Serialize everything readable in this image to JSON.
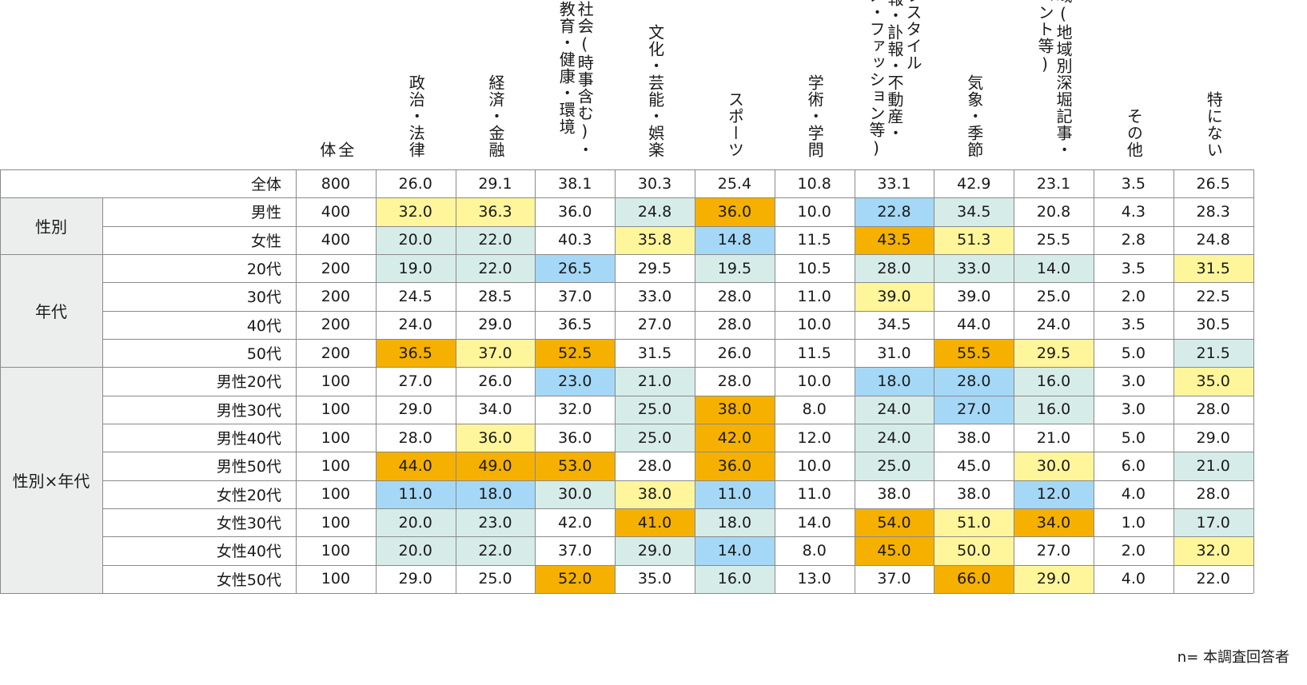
{
  "table": {
    "columns": [
      {
        "id": "n",
        "label": "全\n体"
      },
      {
        "id": "politics",
        "label": "政治・法律"
      },
      {
        "id": "economy",
        "label": "経済・金融"
      },
      {
        "id": "society",
        "label": "社会(時事含む)・\n教育・健康・環境"
      },
      {
        "id": "culture",
        "label": "文化・芸能・娯楽"
      },
      {
        "id": "sports",
        "label": "スポーツ"
      },
      {
        "id": "science",
        "label": "学術・学問"
      },
      {
        "id": "lifestyle",
        "label": "ライフスタイル\n(朗報・訃報・不動産・\nグルメ・ファッション等)"
      },
      {
        "id": "weather",
        "label": "気象・季節"
      },
      {
        "id": "regional",
        "label": "地域(地域別深堀記事・\nイベント等)"
      },
      {
        "id": "other",
        "label": "その他"
      },
      {
        "id": "none",
        "label": "特にない"
      }
    ],
    "colors": {
      "high": "#f5b000",
      "mid_high": "#fff59a",
      "mid_low": "#d6ece9",
      "low": "#a5d8f6",
      "none": "#ffffff",
      "group_bg": "#eceeed"
    },
    "groups": [
      {
        "label": "",
        "start": 0,
        "span": 1
      },
      {
        "label": "性別",
        "start": 1,
        "span": 2
      },
      {
        "label": "年代",
        "start": 3,
        "span": 4
      },
      {
        "label": "性別×年代",
        "start": 7,
        "span": 8
      }
    ],
    "rows": [
      {
        "label": "全体",
        "n": "800",
        "values": [
          "26.0",
          "29.1",
          "38.1",
          "30.3",
          "25.4",
          "10.8",
          "33.1",
          "42.9",
          "23.1",
          "3.5",
          "26.5"
        ],
        "hl": [
          "",
          "",
          "",
          "",
          "",
          "",
          "",
          "",
          "",
          "",
          ""
        ]
      },
      {
        "label": "男性",
        "n": "400",
        "values": [
          "32.0",
          "36.3",
          "36.0",
          "24.8",
          "36.0",
          "10.0",
          "22.8",
          "34.5",
          "20.8",
          "4.3",
          "28.3"
        ],
        "hl": [
          "mid_high",
          "mid_high",
          "",
          "mid_low",
          "high",
          "",
          "low",
          "mid_low",
          "",
          "",
          ""
        ]
      },
      {
        "label": "女性",
        "n": "400",
        "values": [
          "20.0",
          "22.0",
          "40.3",
          "35.8",
          "14.8",
          "11.5",
          "43.5",
          "51.3",
          "25.5",
          "2.8",
          "24.8"
        ],
        "hl": [
          "mid_low",
          "mid_low",
          "",
          "mid_high",
          "low",
          "",
          "high",
          "mid_high",
          "",
          "",
          ""
        ]
      },
      {
        "label": "20代",
        "n": "200",
        "values": [
          "19.0",
          "22.0",
          "26.5",
          "29.5",
          "19.5",
          "10.5",
          "28.0",
          "33.0",
          "14.0",
          "3.5",
          "31.5"
        ],
        "hl": [
          "mid_low",
          "mid_low",
          "low",
          "",
          "mid_low",
          "",
          "mid_low",
          "mid_low",
          "mid_low",
          "",
          "mid_high"
        ]
      },
      {
        "label": "30代",
        "n": "200",
        "values": [
          "24.5",
          "28.5",
          "37.0",
          "33.0",
          "28.0",
          "11.0",
          "39.0",
          "39.0",
          "25.0",
          "2.0",
          "22.5"
        ],
        "hl": [
          "",
          "",
          "",
          "",
          "",
          "",
          "mid_high",
          "",
          "",
          "",
          ""
        ]
      },
      {
        "label": "40代",
        "n": "200",
        "values": [
          "24.0",
          "29.0",
          "36.5",
          "27.0",
          "28.0",
          "10.0",
          "34.5",
          "44.0",
          "24.0",
          "3.5",
          "30.5"
        ],
        "hl": [
          "",
          "",
          "",
          "",
          "",
          "",
          "",
          "",
          "",
          "",
          ""
        ]
      },
      {
        "label": "50代",
        "n": "200",
        "values": [
          "36.5",
          "37.0",
          "52.5",
          "31.5",
          "26.0",
          "11.5",
          "31.0",
          "55.5",
          "29.5",
          "5.0",
          "21.5"
        ],
        "hl": [
          "high",
          "mid_high",
          "high",
          "",
          "",
          "",
          "",
          "high",
          "mid_high",
          "",
          "mid_low"
        ]
      },
      {
        "label": "男性20代",
        "n": "100",
        "values": [
          "27.0",
          "26.0",
          "23.0",
          "21.0",
          "28.0",
          "10.0",
          "18.0",
          "28.0",
          "16.0",
          "3.0",
          "35.0"
        ],
        "hl": [
          "",
          "",
          "low",
          "mid_low",
          "",
          "",
          "low",
          "low",
          "mid_low",
          "",
          "mid_high"
        ]
      },
      {
        "label": "男性30代",
        "n": "100",
        "values": [
          "29.0",
          "34.0",
          "32.0",
          "25.0",
          "38.0",
          "8.0",
          "24.0",
          "27.0",
          "16.0",
          "3.0",
          "28.0"
        ],
        "hl": [
          "",
          "",
          "",
          "mid_low",
          "high",
          "",
          "mid_low",
          "low",
          "mid_low",
          "",
          ""
        ]
      },
      {
        "label": "男性40代",
        "n": "100",
        "values": [
          "28.0",
          "36.0",
          "36.0",
          "25.0",
          "42.0",
          "12.0",
          "24.0",
          "38.0",
          "21.0",
          "5.0",
          "29.0"
        ],
        "hl": [
          "",
          "mid_high",
          "",
          "mid_low",
          "high",
          "",
          "mid_low",
          "",
          "",
          "",
          ""
        ]
      },
      {
        "label": "男性50代",
        "n": "100",
        "values": [
          "44.0",
          "49.0",
          "53.0",
          "28.0",
          "36.0",
          "10.0",
          "25.0",
          "45.0",
          "30.0",
          "6.0",
          "21.0"
        ],
        "hl": [
          "high",
          "high",
          "high",
          "",
          "high",
          "",
          "mid_low",
          "",
          "mid_high",
          "",
          "mid_low"
        ]
      },
      {
        "label": "女性20代",
        "n": "100",
        "values": [
          "11.0",
          "18.0",
          "30.0",
          "38.0",
          "11.0",
          "11.0",
          "38.0",
          "38.0",
          "12.0",
          "4.0",
          "28.0"
        ],
        "hl": [
          "low",
          "low",
          "mid_low",
          "mid_high",
          "low",
          "",
          "",
          "",
          "low",
          "",
          ""
        ]
      },
      {
        "label": "女性30代",
        "n": "100",
        "values": [
          "20.0",
          "23.0",
          "42.0",
          "41.0",
          "18.0",
          "14.0",
          "54.0",
          "51.0",
          "34.0",
          "1.0",
          "17.0"
        ],
        "hl": [
          "mid_low",
          "mid_low",
          "",
          "high",
          "mid_low",
          "",
          "high",
          "mid_high",
          "high",
          "",
          "mid_low"
        ]
      },
      {
        "label": "女性40代",
        "n": "100",
        "values": [
          "20.0",
          "22.0",
          "37.0",
          "29.0",
          "14.0",
          "8.0",
          "45.0",
          "50.0",
          "27.0",
          "2.0",
          "32.0"
        ],
        "hl": [
          "mid_low",
          "mid_low",
          "",
          "mid_low",
          "low",
          "",
          "high",
          "mid_high",
          "",
          "",
          "mid_high"
        ]
      },
      {
        "label": "女性50代",
        "n": "100",
        "values": [
          "29.0",
          "25.0",
          "52.0",
          "35.0",
          "16.0",
          "13.0",
          "37.0",
          "66.0",
          "29.0",
          "4.0",
          "22.0"
        ],
        "hl": [
          "",
          "",
          "high",
          "",
          "mid_low",
          "",
          "",
          "high",
          "mid_high",
          "",
          ""
        ]
      }
    ]
  },
  "chart_data": {
    "type": "table",
    "columns": [
      "全体",
      "政治・法律",
      "経済・金融",
      "社会(時事含む)・教育・健康・環境",
      "文化・芸能・娯楽",
      "スポーツ",
      "学術・学問",
      "ライフスタイル(朗報・訃報・不動産・グルメ・ファッション等)",
      "気象・季節",
      "地域(地域別深堀記事・イベント等)",
      "その他",
      "特にない"
    ],
    "row_labels": [
      "全体",
      "男性",
      "女性",
      "20代",
      "30代",
      "40代",
      "50代",
      "男性20代",
      "男性30代",
      "男性40代",
      "男性50代",
      "女性20代",
      "女性30代",
      "女性40代",
      "女性50代"
    ],
    "values": [
      [
        800,
        26.0,
        29.1,
        38.1,
        30.3,
        25.4,
        10.8,
        33.1,
        42.9,
        23.1,
        3.5,
        26.5
      ],
      [
        400,
        32.0,
        36.3,
        36.0,
        24.8,
        36.0,
        10.0,
        22.8,
        34.5,
        20.8,
        4.3,
        28.3
      ],
      [
        400,
        20.0,
        22.0,
        40.3,
        35.8,
        14.8,
        11.5,
        43.5,
        51.3,
        25.5,
        2.8,
        24.8
      ],
      [
        200,
        19.0,
        22.0,
        26.5,
        29.5,
        19.5,
        10.5,
        28.0,
        33.0,
        14.0,
        3.5,
        31.5
      ],
      [
        200,
        24.5,
        28.5,
        37.0,
        33.0,
        28.0,
        11.0,
        39.0,
        39.0,
        25.0,
        2.0,
        22.5
      ],
      [
        200,
        24.0,
        29.0,
        36.5,
        27.0,
        28.0,
        10.0,
        34.5,
        44.0,
        24.0,
        3.5,
        30.5
      ],
      [
        200,
        36.5,
        37.0,
        52.5,
        31.5,
        26.0,
        11.5,
        31.0,
        55.5,
        29.5,
        5.0,
        21.5
      ],
      [
        100,
        27.0,
        26.0,
        23.0,
        21.0,
        28.0,
        10.0,
        18.0,
        28.0,
        16.0,
        3.0,
        35.0
      ],
      [
        100,
        29.0,
        34.0,
        32.0,
        25.0,
        38.0,
        8.0,
        24.0,
        27.0,
        16.0,
        3.0,
        28.0
      ],
      [
        100,
        28.0,
        36.0,
        36.0,
        25.0,
        42.0,
        12.0,
        24.0,
        38.0,
        21.0,
        5.0,
        29.0
      ],
      [
        100,
        44.0,
        49.0,
        53.0,
        28.0,
        36.0,
        10.0,
        25.0,
        45.0,
        30.0,
        6.0,
        21.0
      ],
      [
        100,
        11.0,
        18.0,
        30.0,
        38.0,
        11.0,
        11.0,
        38.0,
        38.0,
        12.0,
        4.0,
        28.0
      ],
      [
        100,
        20.0,
        23.0,
        42.0,
        41.0,
        18.0,
        14.0,
        54.0,
        51.0,
        34.0,
        1.0,
        17.0
      ],
      [
        100,
        20.0,
        22.0,
        37.0,
        29.0,
        14.0,
        8.0,
        45.0,
        50.0,
        27.0,
        2.0,
        32.0
      ],
      [
        100,
        29.0,
        25.0,
        52.0,
        35.0,
        16.0,
        13.0,
        37.0,
        66.0,
        29.0,
        4.0,
        22.0
      ]
    ]
  },
  "footnote": "n= 本調査回答者"
}
